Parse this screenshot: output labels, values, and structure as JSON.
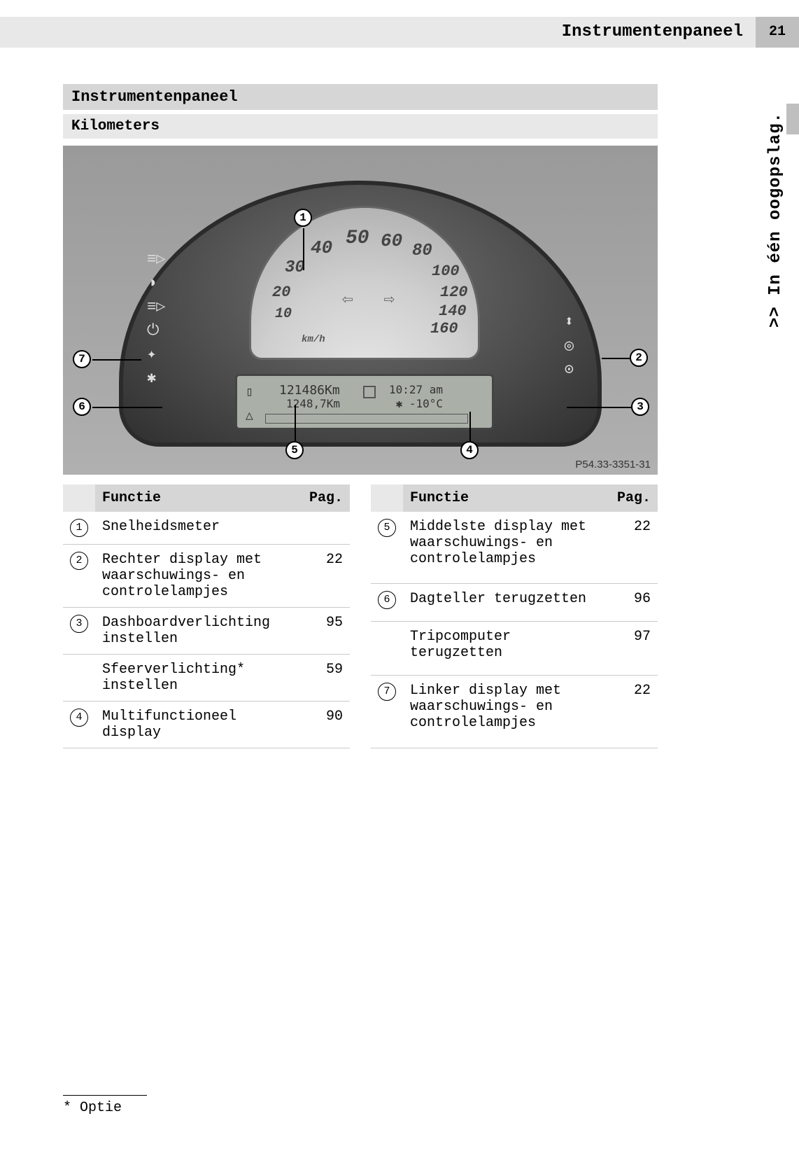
{
  "header": {
    "title": "Instrumentenpaneel",
    "page": "21"
  },
  "side_tab": ">> In één oogopslag.",
  "section": {
    "title": "Instrumentenpaneel",
    "subtitle": "Kilometers"
  },
  "figure": {
    "ref": "P54.33-3351-31",
    "speed_numbers": [
      "10",
      "20",
      "30",
      "40",
      "50",
      "60",
      "80",
      "100",
      "120",
      "140",
      "160"
    ],
    "unit": "km/h",
    "lcd": {
      "odo": "121486Km",
      "trip": "1248,7Km",
      "time": "10:27 am",
      "temp": "✱ -10°C"
    },
    "callouts": [
      "1",
      "2",
      "3",
      "4",
      "5",
      "6",
      "7"
    ]
  },
  "table_left": {
    "head": {
      "func": "Functie",
      "page": "Pag."
    },
    "rows": [
      {
        "n": "1",
        "items": [
          {
            "text": "Snelheidsmeter",
            "page": ""
          }
        ]
      },
      {
        "n": "2",
        "items": [
          {
            "text": "Rechter display met waarschuwings- en controlelampjes",
            "page": "22"
          }
        ]
      },
      {
        "n": "3",
        "items": [
          {
            "text": "Dashboardverlichting instellen",
            "page": "95"
          },
          {
            "text": "Sfeerverlichting* instellen",
            "page": "59"
          }
        ]
      },
      {
        "n": "4",
        "items": [
          {
            "text": "Multifunctioneel display",
            "page": "90"
          }
        ]
      }
    ]
  },
  "table_right": {
    "head": {
      "func": "Functie",
      "page": "Pag."
    },
    "rows": [
      {
        "n": "5",
        "items": [
          {
            "text": "Middelste display met waarschuwings- en controlelampjes",
            "page": "22"
          }
        ]
      },
      {
        "n": "6",
        "items": [
          {
            "text": "Dagteller terugzetten",
            "page": "96"
          },
          {
            "text": "Tripcomputer terugzetten",
            "page": "97"
          }
        ]
      },
      {
        "n": "7",
        "items": [
          {
            "text": "Linker display met waarschuwings- en controlelampjes",
            "page": "22"
          }
        ]
      }
    ]
  },
  "footnote": "* Optie"
}
